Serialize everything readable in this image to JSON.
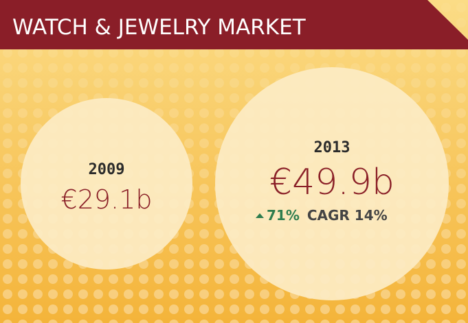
{
  "header": {
    "title": "WATCH & JEWELRY MARKET"
  },
  "items": [
    {
      "year": "2009",
      "value": "€29.1b"
    },
    {
      "year": "2013",
      "value": "€49.9b",
      "growth": "71%",
      "cagr": "CAGR 14%"
    }
  ]
}
